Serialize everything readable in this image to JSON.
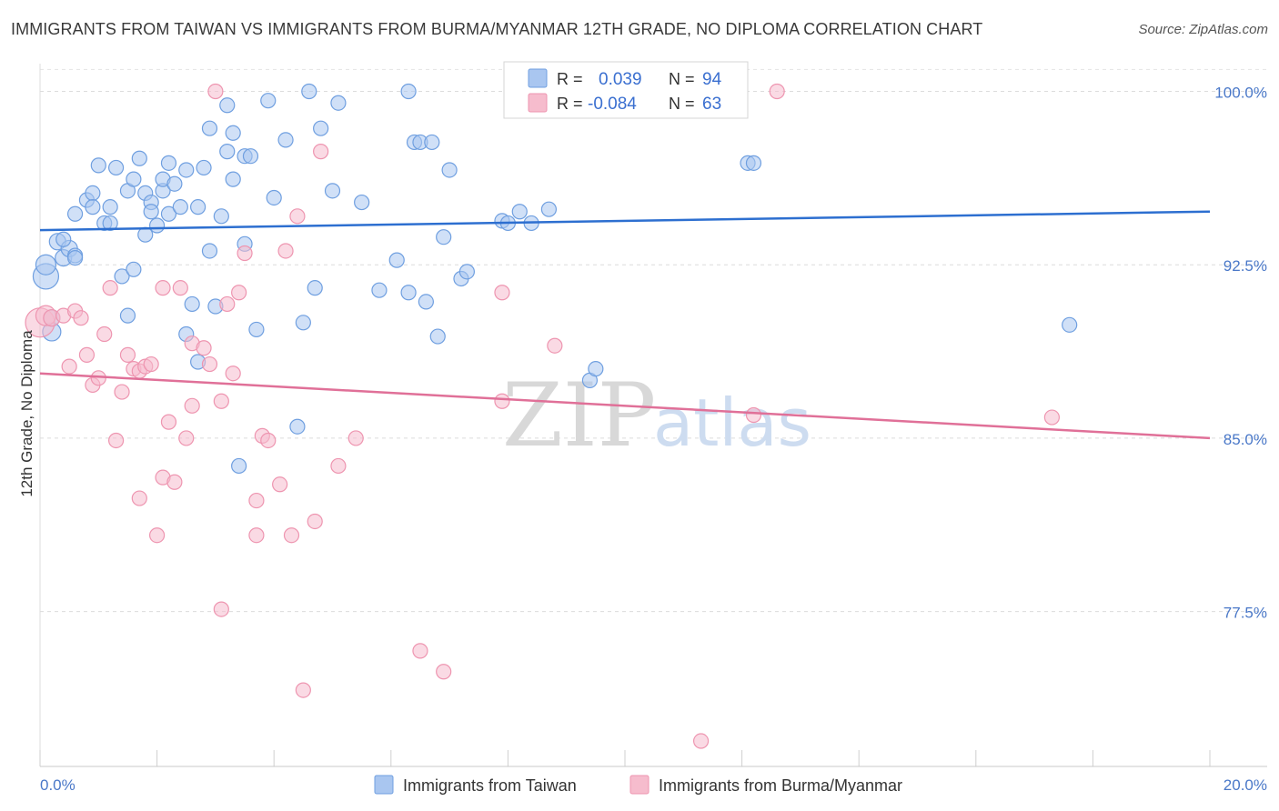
{
  "title": "IMMIGRANTS FROM TAIWAN VS IMMIGRANTS FROM BURMA/MYANMAR 12TH GRADE, NO DIPLOMA CORRELATION CHART",
  "source": "Source: ZipAtlas.com",
  "watermark": {
    "part1": "ZIP",
    "part2": "atlas"
  },
  "legend": {
    "taiwan": {
      "r_label": "R =",
      "r_value": "0.039",
      "n_label": "N =",
      "n_value": "94"
    },
    "burma": {
      "r_label": "R =",
      "r_value": "-0.084",
      "n_label": "N =",
      "n_value": "63"
    }
  },
  "colors": {
    "taiwan_fill": "#a9c6f0",
    "taiwan_stroke": "#6f9fe0",
    "taiwan_line": "#2d6fd0",
    "burma_fill": "#f6bccd",
    "burma_stroke": "#ee95b0",
    "burma_line": "#e07098"
  },
  "chart_data": {
    "type": "scatter",
    "xlabel": "",
    "ylabel": "12th Grade, No Diploma",
    "xlim": [
      0,
      20
    ],
    "ylim": [
      70.8,
      101.2
    ],
    "x_tick_labels": [
      "0.0%",
      "20.0%"
    ],
    "y_ticks": [
      77.5,
      85.0,
      92.5,
      100.0
    ],
    "y_tick_labels": [
      "77.5%",
      "85.0%",
      "92.5%",
      "100.0%"
    ],
    "grid": true,
    "legend_position": "top-center",
    "series": [
      {
        "name": "Immigrants from Taiwan",
        "trend": {
          "x": [
            0,
            20
          ],
          "y": [
            94.0,
            94.8
          ]
        },
        "points": [
          [
            0.1,
            92.0,
            14
          ],
          [
            0.1,
            92.5,
            11
          ],
          [
            0.2,
            89.6,
            10
          ],
          [
            0.2,
            90.2,
            9
          ],
          [
            0.3,
            93.5,
            9
          ],
          [
            0.4,
            92.8,
            9
          ],
          [
            0.5,
            93.2,
            9
          ],
          [
            0.6,
            92.9,
            8
          ],
          [
            0.6,
            92.8,
            8
          ],
          [
            0.4,
            93.6,
            8
          ],
          [
            0.6,
            94.7,
            8
          ],
          [
            0.8,
            95.3,
            8
          ],
          [
            0.9,
            95.6,
            8
          ],
          [
            0.9,
            95.0,
            8
          ],
          [
            1.0,
            96.8,
            8
          ],
          [
            1.1,
            94.3,
            8
          ],
          [
            1.2,
            95.0,
            8
          ],
          [
            1.2,
            94.3,
            8
          ],
          [
            1.3,
            96.7,
            8
          ],
          [
            1.4,
            92.0,
            8
          ],
          [
            1.5,
            95.7,
            8
          ],
          [
            1.5,
            90.3,
            8
          ],
          [
            1.6,
            92.3,
            8
          ],
          [
            1.6,
            96.2,
            8
          ],
          [
            1.7,
            97.1,
            8
          ],
          [
            1.8,
            95.6,
            8
          ],
          [
            1.8,
            93.8,
            8
          ],
          [
            1.9,
            95.2,
            8
          ],
          [
            1.9,
            94.8,
            8
          ],
          [
            2.0,
            94.2,
            8
          ],
          [
            2.1,
            95.7,
            8
          ],
          [
            2.1,
            96.2,
            8
          ],
          [
            2.2,
            94.7,
            8
          ],
          [
            2.2,
            96.9,
            8
          ],
          [
            2.3,
            96.0,
            8
          ],
          [
            2.4,
            95.0,
            8
          ],
          [
            2.5,
            96.6,
            8
          ],
          [
            2.5,
            89.5,
            8
          ],
          [
            2.6,
            90.8,
            8
          ],
          [
            2.7,
            88.3,
            8
          ],
          [
            2.7,
            95.0,
            8
          ],
          [
            2.8,
            96.7,
            8
          ],
          [
            2.9,
            98.4,
            8
          ],
          [
            2.9,
            93.1,
            8
          ],
          [
            3.0,
            90.7,
            8
          ],
          [
            3.1,
            94.6,
            8
          ],
          [
            3.2,
            97.4,
            8
          ],
          [
            3.2,
            99.4,
            8
          ],
          [
            3.3,
            98.2,
            8
          ],
          [
            3.3,
            96.2,
            8
          ],
          [
            3.5,
            93.4,
            8
          ],
          [
            3.5,
            97.2,
            8
          ],
          [
            3.6,
            97.2,
            8
          ],
          [
            3.4,
            83.8,
            8
          ],
          [
            3.7,
            89.7,
            8
          ],
          [
            3.9,
            99.6,
            8
          ],
          [
            4.0,
            95.4,
            8
          ],
          [
            4.2,
            97.9,
            8
          ],
          [
            4.4,
            85.5,
            8
          ],
          [
            4.5,
            90.0,
            8
          ],
          [
            4.6,
            100.0,
            8
          ],
          [
            4.7,
            91.5,
            8
          ],
          [
            4.8,
            98.4,
            8
          ],
          [
            5.0,
            95.7,
            8
          ],
          [
            5.1,
            99.5,
            8
          ],
          [
            5.5,
            95.2,
            8
          ],
          [
            5.8,
            91.4,
            8
          ],
          [
            6.1,
            92.7,
            8
          ],
          [
            6.3,
            91.3,
            8
          ],
          [
            6.3,
            100.0,
            8
          ],
          [
            6.4,
            97.8,
            8
          ],
          [
            6.5,
            97.8,
            8
          ],
          [
            6.6,
            90.9,
            8
          ],
          [
            6.7,
            97.8,
            8
          ],
          [
            6.8,
            89.4,
            8
          ],
          [
            6.9,
            93.7,
            8
          ],
          [
            7.0,
            96.6,
            8
          ],
          [
            7.2,
            91.9,
            8
          ],
          [
            7.3,
            92.2,
            8
          ],
          [
            7.9,
            94.4,
            8
          ],
          [
            8.0,
            94.3,
            8
          ],
          [
            8.2,
            94.8,
            8
          ],
          [
            8.4,
            94.3,
            8
          ],
          [
            8.7,
            94.9,
            8
          ],
          [
            9.4,
            87.5,
            8
          ],
          [
            9.5,
            88.0,
            8
          ],
          [
            12.1,
            96.9,
            8
          ],
          [
            12.2,
            96.9,
            8
          ],
          [
            11.9,
            100.0,
            8
          ],
          [
            17.6,
            89.9,
            8
          ]
        ]
      },
      {
        "name": "Immigrants from Burma/Myanmar",
        "trend": {
          "x": [
            0,
            20
          ],
          "y": [
            87.8,
            85.0
          ]
        },
        "points": [
          [
            0.0,
            90.0,
            16
          ],
          [
            0.1,
            90.3,
            11
          ],
          [
            0.2,
            90.2,
            9
          ],
          [
            0.4,
            90.3,
            8
          ],
          [
            0.5,
            88.1,
            8
          ],
          [
            0.6,
            90.5,
            8
          ],
          [
            0.7,
            90.2,
            8
          ],
          [
            0.8,
            88.6,
            8
          ],
          [
            0.9,
            87.3,
            8
          ],
          [
            1.0,
            87.6,
            8
          ],
          [
            1.1,
            89.5,
            8
          ],
          [
            1.2,
            91.5,
            8
          ],
          [
            1.3,
            84.9,
            8
          ],
          [
            1.4,
            87.0,
            8
          ],
          [
            1.5,
            88.6,
            8
          ],
          [
            1.6,
            88.0,
            8
          ],
          [
            1.7,
            87.9,
            8
          ],
          [
            1.7,
            82.4,
            8
          ],
          [
            1.8,
            88.1,
            8
          ],
          [
            1.9,
            88.2,
            8
          ],
          [
            2.0,
            80.8,
            8
          ],
          [
            2.1,
            91.5,
            8
          ],
          [
            2.1,
            83.3,
            8
          ],
          [
            2.2,
            85.7,
            8
          ],
          [
            2.3,
            83.1,
            8
          ],
          [
            2.4,
            91.5,
            8
          ],
          [
            2.5,
            85.0,
            8
          ],
          [
            2.6,
            89.1,
            8
          ],
          [
            2.6,
            86.4,
            8
          ],
          [
            2.8,
            88.9,
            8
          ],
          [
            2.9,
            88.2,
            8
          ],
          [
            3.0,
            100.0,
            8
          ],
          [
            3.1,
            77.6,
            8
          ],
          [
            3.1,
            86.6,
            8
          ],
          [
            3.2,
            90.8,
            8
          ],
          [
            3.3,
            87.8,
            8
          ],
          [
            3.4,
            91.3,
            8
          ],
          [
            3.5,
            93.0,
            8
          ],
          [
            3.7,
            80.8,
            8
          ],
          [
            3.7,
            82.3,
            8
          ],
          [
            3.8,
            85.1,
            8
          ],
          [
            3.9,
            84.9,
            8
          ],
          [
            4.1,
            83.0,
            8
          ],
          [
            4.2,
            93.1,
            8
          ],
          [
            4.3,
            80.8,
            8
          ],
          [
            4.4,
            94.6,
            8
          ],
          [
            4.5,
            74.1,
            8
          ],
          [
            4.7,
            81.4,
            8
          ],
          [
            4.8,
            97.4,
            8
          ],
          [
            5.1,
            83.8,
            8
          ],
          [
            5.4,
            85.0,
            8
          ],
          [
            6.5,
            75.8,
            8
          ],
          [
            6.9,
            74.9,
            8
          ],
          [
            7.9,
            91.3,
            8
          ],
          [
            7.9,
            86.6,
            8
          ],
          [
            8.8,
            89.0,
            8
          ],
          [
            11.3,
            71.9,
            8
          ],
          [
            12.2,
            86.0,
            8
          ],
          [
            12.6,
            100.0,
            8
          ],
          [
            17.3,
            85.9,
            8
          ]
        ]
      }
    ]
  },
  "bottom_legend": {
    "taiwan_label": "Immigrants from Taiwan",
    "burma_label": "Immigrants from Burma/Myanmar"
  }
}
